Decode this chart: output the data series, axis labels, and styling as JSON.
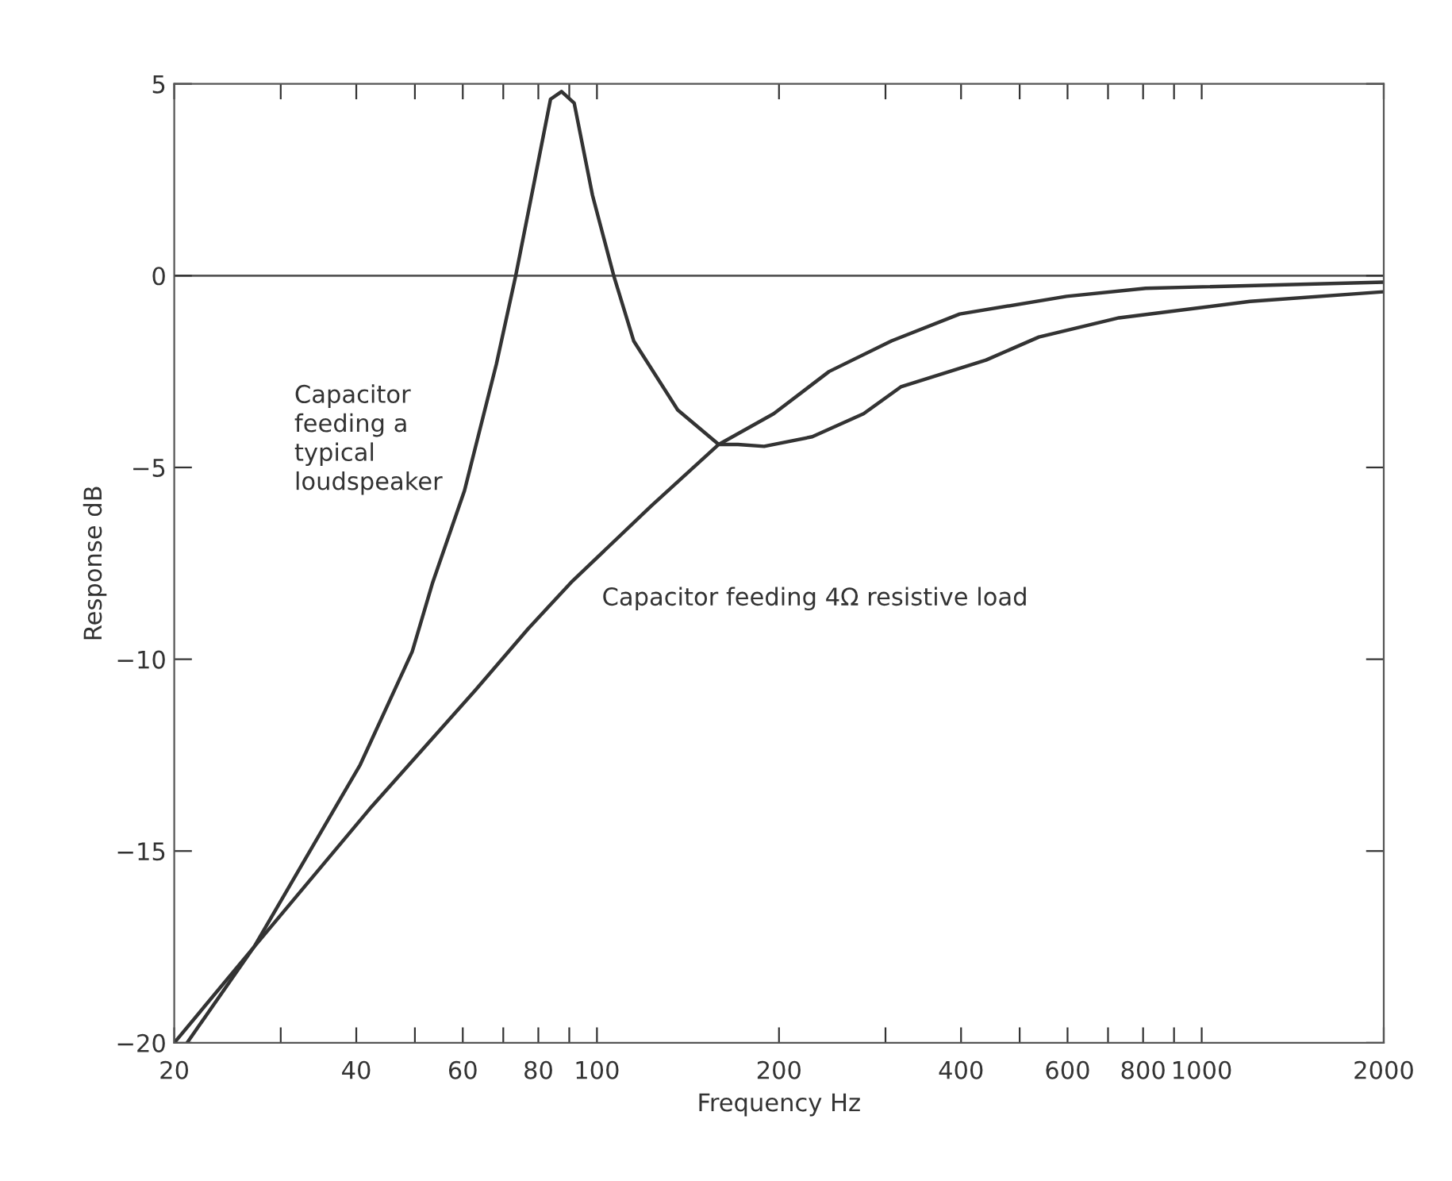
{
  "chart_data": {
    "type": "line",
    "xlabel": "Frequency Hz",
    "ylabel": "Response dB",
    "log": "x",
    "xlim": [
      20,
      2000
    ],
    "ylim": [
      -20,
      5
    ],
    "xticks": [
      20,
      {
        "value": 30,
        "label": null
      },
      40,
      {
        "value": 50,
        "label": null
      },
      60,
      {
        "value": 70,
        "label": null
      },
      80,
      {
        "value": 90,
        "label": null
      },
      100,
      200,
      {
        "value": 300,
        "label": null
      },
      400,
      {
        "value": 500,
        "label": null
      },
      600,
      {
        "value": 700,
        "label": null
      },
      800,
      {
        "value": 900,
        "label": null
      },
      1000,
      2000
    ],
    "yticks": [
      {
        "value": -20,
        "label": "−20"
      },
      {
        "value": -15,
        "label": "−15"
      },
      {
        "value": -10,
        "label": "−10"
      },
      {
        "value": -5,
        "label": "−5"
      },
      0,
      5
    ],
    "grid": false,
    "marker": "none",
    "line_style": "solid",
    "ref_lines": [
      {
        "axis": "y",
        "value": 0,
        "label": null,
        "color": "#555555"
      }
    ],
    "series": [
      {
        "name": "Capacitor\nfeeding a\ntypical\nloudspeaker",
        "color": "#333333",
        "x": [
          20,
          27.1,
          40.6,
          49.5,
          53.5,
          60.4,
          68.2,
          73.4,
          78.9,
          83.8,
          87.4,
          91.7,
          98.3,
          106.6,
          115,
          136,
          159,
          171,
          189,
          227,
          276,
          318,
          440,
          538,
          730,
          1202,
          2000
        ],
        "values": [
          -20,
          -17.5,
          -12.75,
          -9.8,
          -8.0,
          -5.6,
          -2.3,
          0,
          2.5,
          4.6,
          4.8,
          4.5,
          2.1,
          0,
          -1.7,
          -3.5,
          -4.4,
          -4.4,
          -4.45,
          -4.2,
          -3.6,
          -2.9,
          -2.2,
          -1.6,
          -1.1,
          -0.67,
          -0.42
        ]
      },
      {
        "name": "Capacitor feeding 4Ω resistive load",
        "color": "#333333",
        "x": [
          21,
          27.1,
          42.1,
          63,
          77,
          90.6,
          123,
          159,
          196,
          242,
          307,
          398,
          598,
          808,
          2000
        ],
        "values": [
          -20,
          -17.5,
          -13.9,
          -10.8,
          -9.2,
          -8.0,
          -6.0,
          -4.4,
          -3.6,
          -2.5,
          -1.7,
          -1.0,
          -0.54,
          -0.33,
          -0.17
        ]
      }
    ]
  }
}
